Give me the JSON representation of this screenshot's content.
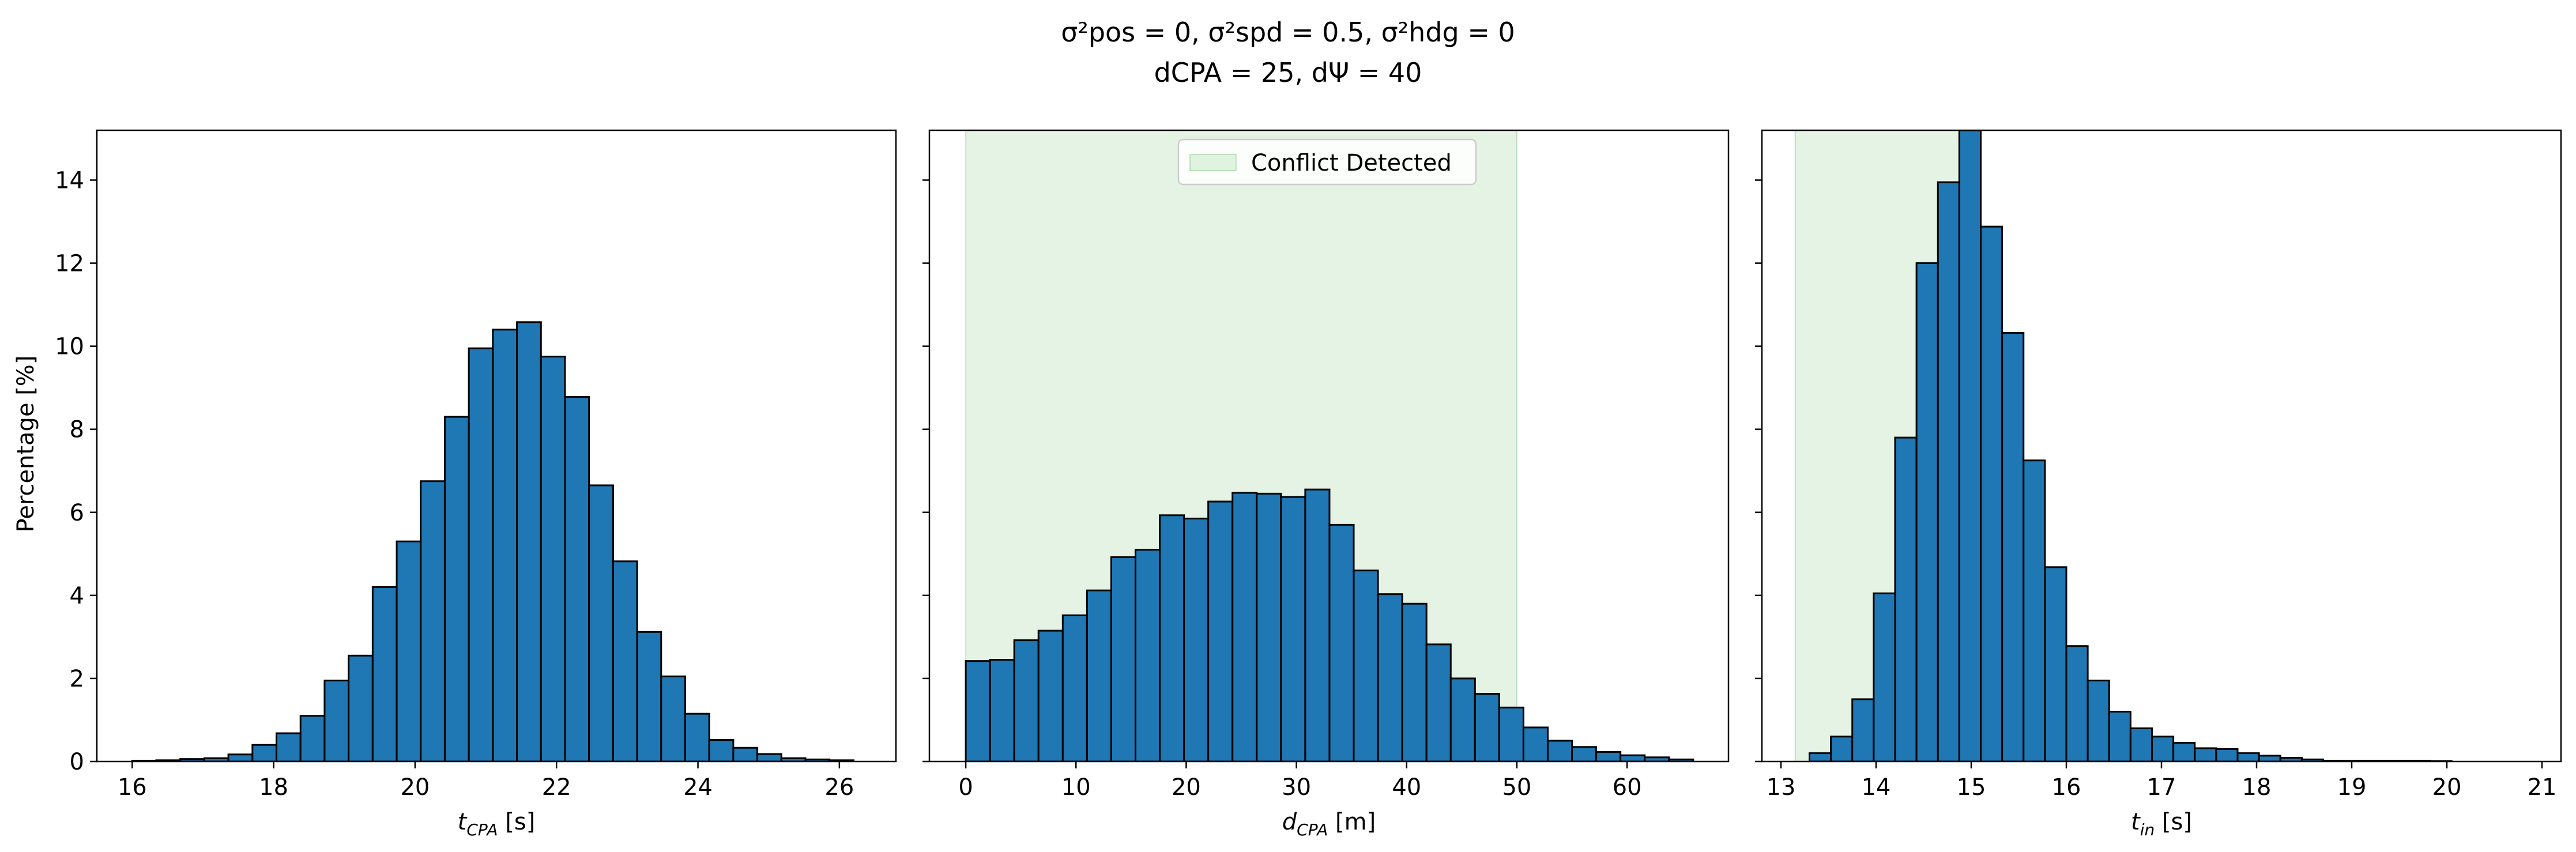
{
  "figure": {
    "title_line1": "σ²pos = 0, σ²spd = 0.5, σ²hdg = 0",
    "title_line2": "dCPA = 25, dΨ = 40",
    "ylabel": "Percentage [%]",
    "bar_color": "#1f77b4",
    "shade_color": "#2ca02c",
    "legend_label": "Conflict Detected"
  },
  "chart_data": [
    {
      "type": "bar",
      "title": "",
      "xlabel": "tCPA [s]",
      "ylabel": "Percentage [%]",
      "xlim": [
        15.5,
        26.8
      ],
      "ylim": [
        0,
        15.2
      ],
      "xticks": [
        16,
        18,
        20,
        22,
        24,
        26
      ],
      "yticks": [
        0,
        2,
        4,
        6,
        8,
        10,
        12,
        14
      ],
      "bin_start": 16.0,
      "bin_width": 0.34,
      "values": [
        0.02,
        0.03,
        0.06,
        0.08,
        0.17,
        0.4,
        0.68,
        1.1,
        1.95,
        2.55,
        4.2,
        5.3,
        6.75,
        8.3,
        9.95,
        10.4,
        10.58,
        9.75,
        8.78,
        6.65,
        4.82,
        3.12,
        2.05,
        1.15,
        0.52,
        0.33,
        0.18,
        0.08,
        0.05,
        0.03
      ],
      "shaded_region": null,
      "legend": null
    },
    {
      "type": "bar",
      "title": "",
      "xlabel": "dCPA [m]",
      "ylabel": "",
      "xlim": [
        -3.3,
        69.2
      ],
      "ylim": [
        0,
        15.2
      ],
      "xticks": [
        0,
        10,
        20,
        30,
        40,
        50,
        60
      ],
      "yticks": [
        0,
        2,
        4,
        6,
        8,
        10,
        12,
        14
      ],
      "bin_start": 0.0,
      "bin_width": 2.2,
      "values": [
        2.42,
        2.45,
        2.92,
        3.15,
        3.52,
        4.12,
        4.92,
        5.1,
        5.93,
        5.85,
        6.26,
        6.47,
        6.45,
        6.37,
        6.55,
        5.7,
        4.6,
        4.03,
        3.8,
        2.82,
        2.0,
        1.63,
        1.3,
        0.82,
        0.5,
        0.35,
        0.23,
        0.15,
        0.1,
        0.05
      ],
      "shaded_region": [
        0,
        50
      ],
      "legend": "Conflict Detected"
    },
    {
      "type": "bar",
      "title": "",
      "xlabel": "tin [s]",
      "ylabel": "",
      "xlim": [
        12.8,
        21.2
      ],
      "ylim": [
        0,
        15.2
      ],
      "xticks": [
        13,
        14,
        15,
        16,
        17,
        18,
        19,
        20,
        21
      ],
      "yticks": [
        0,
        2,
        4,
        6,
        8,
        10,
        12,
        14
      ],
      "bin_start": 13.3,
      "bin_width": 0.225,
      "values": [
        0.2,
        0.6,
        1.5,
        4.05,
        7.8,
        12.0,
        13.95,
        15.2,
        12.88,
        10.32,
        7.25,
        4.68,
        2.78,
        1.95,
        1.2,
        0.8,
        0.6,
        0.45,
        0.32,
        0.3,
        0.2,
        0.14,
        0.09,
        0.05,
        0.02,
        0.02,
        0.02,
        0.02,
        0.02,
        0.01
      ],
      "shaded_region": [
        13.15,
        15.1
      ],
      "legend": null
    }
  ]
}
